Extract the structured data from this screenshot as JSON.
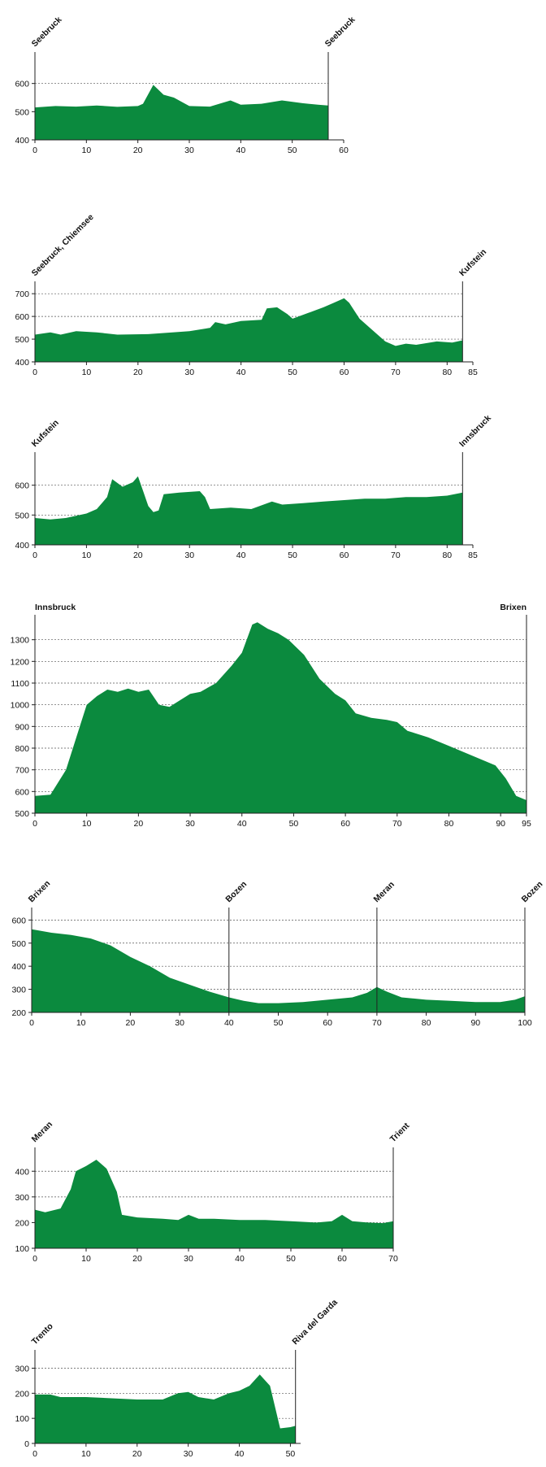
{
  "colors": {
    "fill": "#0b8a3e",
    "background": "#ffffff"
  },
  "chart_data": [
    {
      "type": "area",
      "x_ticks": [
        0,
        10,
        20,
        30,
        40,
        50,
        60
      ],
      "y_ticks": [
        400,
        500,
        600
      ],
      "xlim": [
        0,
        60
      ],
      "ylim": [
        400,
        700
      ],
      "grid": true,
      "locations": [
        {
          "label": "Seebruck",
          "x": 0,
          "rotated": true
        },
        {
          "label": "Seebruck",
          "x": 57,
          "rotated": true
        }
      ],
      "markers": [
        57
      ],
      "profile": [
        [
          0,
          515
        ],
        [
          4,
          520
        ],
        [
          8,
          518
        ],
        [
          12,
          522
        ],
        [
          16,
          517
        ],
        [
          20,
          520
        ],
        [
          21,
          528
        ],
        [
          23,
          595
        ],
        [
          25,
          560
        ],
        [
          27,
          550
        ],
        [
          30,
          520
        ],
        [
          34,
          518
        ],
        [
          38,
          540
        ],
        [
          40,
          525
        ],
        [
          44,
          528
        ],
        [
          48,
          540
        ],
        [
          52,
          530
        ],
        [
          55,
          525
        ],
        [
          57,
          522
        ]
      ]
    },
    {
      "type": "area",
      "x_ticks": [
        0,
        10,
        20,
        30,
        40,
        50,
        60,
        70,
        80,
        85
      ],
      "y_ticks": [
        400,
        500,
        600,
        700
      ],
      "xlim": [
        0,
        85
      ],
      "ylim": [
        400,
        740
      ],
      "grid": true,
      "locations": [
        {
          "label": "Seebruck, Chiemsee",
          "x": 0,
          "rotated": true
        },
        {
          "label": "Kufstein",
          "x": 83,
          "rotated": true
        }
      ],
      "markers": [
        83
      ],
      "profile": [
        [
          0,
          520
        ],
        [
          3,
          530
        ],
        [
          5,
          520
        ],
        [
          8,
          535
        ],
        [
          12,
          530
        ],
        [
          16,
          520
        ],
        [
          22,
          522
        ],
        [
          30,
          535
        ],
        [
          34,
          550
        ],
        [
          35,
          575
        ],
        [
          37,
          565
        ],
        [
          40,
          580
        ],
        [
          44,
          585
        ],
        [
          45,
          635
        ],
        [
          47,
          640
        ],
        [
          49,
          610
        ],
        [
          50,
          590
        ],
        [
          53,
          615
        ],
        [
          56,
          640
        ],
        [
          58,
          660
        ],
        [
          60,
          680
        ],
        [
          61,
          660
        ],
        [
          63,
          590
        ],
        [
          65,
          550
        ],
        [
          68,
          490
        ],
        [
          70,
          470
        ],
        [
          72,
          480
        ],
        [
          74,
          475
        ],
        [
          78,
          490
        ],
        [
          81,
          485
        ],
        [
          83,
          495
        ]
      ]
    },
    {
      "type": "area",
      "x_ticks": [
        0,
        10,
        20,
        30,
        40,
        50,
        60,
        70,
        80,
        85
      ],
      "y_ticks": [
        400,
        500,
        600
      ],
      "xlim": [
        0,
        85
      ],
      "ylim": [
        400,
        700
      ],
      "grid": true,
      "locations": [
        {
          "label": "Kufstein",
          "x": 0,
          "rotated": true
        },
        {
          "label": "Innsbruck",
          "x": 83,
          "rotated": true
        }
      ],
      "markers": [
        83
      ],
      "profile": [
        [
          0,
          490
        ],
        [
          3,
          485
        ],
        [
          6,
          490
        ],
        [
          10,
          505
        ],
        [
          12,
          520
        ],
        [
          14,
          560
        ],
        [
          15,
          620
        ],
        [
          17,
          595
        ],
        [
          19,
          610
        ],
        [
          20,
          630
        ],
        [
          21,
          580
        ],
        [
          22,
          530
        ],
        [
          23,
          510
        ],
        [
          24,
          515
        ],
        [
          25,
          570
        ],
        [
          28,
          575
        ],
        [
          32,
          580
        ],
        [
          33,
          560
        ],
        [
          34,
          520
        ],
        [
          38,
          525
        ],
        [
          42,
          520
        ],
        [
          46,
          545
        ],
        [
          48,
          535
        ],
        [
          52,
          540
        ],
        [
          56,
          545
        ],
        [
          60,
          550
        ],
        [
          64,
          555
        ],
        [
          68,
          555
        ],
        [
          72,
          560
        ],
        [
          76,
          560
        ],
        [
          80,
          565
        ],
        [
          83,
          575
        ]
      ]
    },
    {
      "type": "area",
      "x_ticks": [
        0,
        10,
        20,
        30,
        40,
        50,
        60,
        70,
        80,
        90,
        95
      ],
      "y_ticks": [
        500,
        600,
        700,
        800,
        900,
        1000,
        1100,
        1200,
        1300
      ],
      "xlim": [
        0,
        95
      ],
      "ylim": [
        500,
        1400
      ],
      "grid": true,
      "locations": [
        {
          "label": "Innsbruck",
          "x": 0,
          "rotated": false
        },
        {
          "label": "Brixen",
          "x": 95,
          "rotated": false
        }
      ],
      "markers": [
        95
      ],
      "profile": [
        [
          0,
          580
        ],
        [
          3,
          585
        ],
        [
          6,
          700
        ],
        [
          10,
          1000
        ],
        [
          12,
          1040
        ],
        [
          14,
          1070
        ],
        [
          16,
          1060
        ],
        [
          18,
          1075
        ],
        [
          20,
          1060
        ],
        [
          22,
          1070
        ],
        [
          24,
          1000
        ],
        [
          26,
          990
        ],
        [
          28,
          1020
        ],
        [
          30,
          1050
        ],
        [
          32,
          1060
        ],
        [
          35,
          1100
        ],
        [
          38,
          1180
        ],
        [
          40,
          1240
        ],
        [
          42,
          1370
        ],
        [
          43,
          1380
        ],
        [
          45,
          1350
        ],
        [
          47,
          1330
        ],
        [
          49,
          1300
        ],
        [
          52,
          1230
        ],
        [
          55,
          1120
        ],
        [
          58,
          1050
        ],
        [
          60,
          1020
        ],
        [
          62,
          960
        ],
        [
          65,
          940
        ],
        [
          68,
          930
        ],
        [
          70,
          920
        ],
        [
          72,
          880
        ],
        [
          76,
          850
        ],
        [
          80,
          810
        ],
        [
          83,
          780
        ],
        [
          86,
          750
        ],
        [
          89,
          720
        ],
        [
          91,
          660
        ],
        [
          93,
          580
        ],
        [
          95,
          560
        ]
      ]
    },
    {
      "type": "area",
      "x_ticks": [
        0,
        10,
        20,
        30,
        40,
        50,
        60,
        70,
        80,
        90,
        100
      ],
      "y_ticks": [
        200,
        300,
        400,
        500,
        600
      ],
      "xlim": [
        0,
        100
      ],
      "ylim": [
        200,
        640
      ],
      "grid": true,
      "locations": [
        {
          "label": "Brixen",
          "x": 0,
          "rotated": true
        },
        {
          "label": "Bozen",
          "x": 40,
          "rotated": true
        },
        {
          "label": "Meran",
          "x": 70,
          "rotated": true
        },
        {
          "label": "Bozen",
          "x": 100,
          "rotated": true
        }
      ],
      "markers": [
        40,
        70,
        100
      ],
      "profile": [
        [
          0,
          560
        ],
        [
          4,
          545
        ],
        [
          8,
          535
        ],
        [
          12,
          520
        ],
        [
          16,
          490
        ],
        [
          20,
          440
        ],
        [
          24,
          400
        ],
        [
          28,
          350
        ],
        [
          32,
          320
        ],
        [
          36,
          290
        ],
        [
          40,
          265
        ],
        [
          43,
          250
        ],
        [
          46,
          240
        ],
        [
          50,
          240
        ],
        [
          55,
          245
        ],
        [
          60,
          255
        ],
        [
          65,
          265
        ],
        [
          68,
          285
        ],
        [
          70,
          310
        ],
        [
          72,
          290
        ],
        [
          75,
          265
        ],
        [
          80,
          255
        ],
        [
          85,
          250
        ],
        [
          90,
          245
        ],
        [
          95,
          245
        ],
        [
          98,
          255
        ],
        [
          100,
          270
        ]
      ]
    },
    {
      "type": "area",
      "x_ticks": [
        0,
        10,
        20,
        30,
        40,
        50,
        60,
        70
      ],
      "y_ticks": [
        100,
        200,
        300,
        400
      ],
      "xlim": [
        0,
        70
      ],
      "ylim": [
        100,
        480
      ],
      "grid": true,
      "locations": [
        {
          "label": "Meran",
          "x": 0,
          "rotated": true
        },
        {
          "label": "Trient",
          "x": 70,
          "rotated": true
        }
      ],
      "markers": [
        70
      ],
      "profile": [
        [
          0,
          250
        ],
        [
          2,
          240
        ],
        [
          5,
          255
        ],
        [
          7,
          330
        ],
        [
          8,
          400
        ],
        [
          10,
          420
        ],
        [
          12,
          445
        ],
        [
          14,
          410
        ],
        [
          16,
          320
        ],
        [
          17,
          230
        ],
        [
          20,
          220
        ],
        [
          25,
          215
        ],
        [
          28,
          210
        ],
        [
          30,
          230
        ],
        [
          32,
          215
        ],
        [
          35,
          215
        ],
        [
          40,
          210
        ],
        [
          45,
          210
        ],
        [
          50,
          205
        ],
        [
          55,
          200
        ],
        [
          58,
          205
        ],
        [
          60,
          230
        ],
        [
          62,
          205
        ],
        [
          65,
          200
        ],
        [
          68,
          198
        ],
        [
          70,
          205
        ]
      ]
    },
    {
      "type": "area",
      "x_ticks": [
        0,
        10,
        20,
        30,
        40,
        50
      ],
      "y_ticks": [
        0,
        100,
        200,
        300
      ],
      "xlim": [
        0,
        52
      ],
      "ylim": [
        0,
        360
      ],
      "grid": true,
      "locations": [
        {
          "label": "Trento",
          "x": 0,
          "rotated": true
        },
        {
          "label": "Riva del Garda",
          "x": 51,
          "rotated": true
        }
      ],
      "markers": [
        51
      ],
      "profile": [
        [
          0,
          195
        ],
        [
          3,
          195
        ],
        [
          5,
          185
        ],
        [
          10,
          185
        ],
        [
          15,
          180
        ],
        [
          20,
          175
        ],
        [
          25,
          175
        ],
        [
          28,
          200
        ],
        [
          30,
          205
        ],
        [
          32,
          185
        ],
        [
          35,
          175
        ],
        [
          38,
          200
        ],
        [
          40,
          210
        ],
        [
          42,
          230
        ],
        [
          44,
          275
        ],
        [
          46,
          230
        ],
        [
          48,
          60
        ],
        [
          50,
          65
        ],
        [
          51,
          70
        ]
      ]
    }
  ]
}
